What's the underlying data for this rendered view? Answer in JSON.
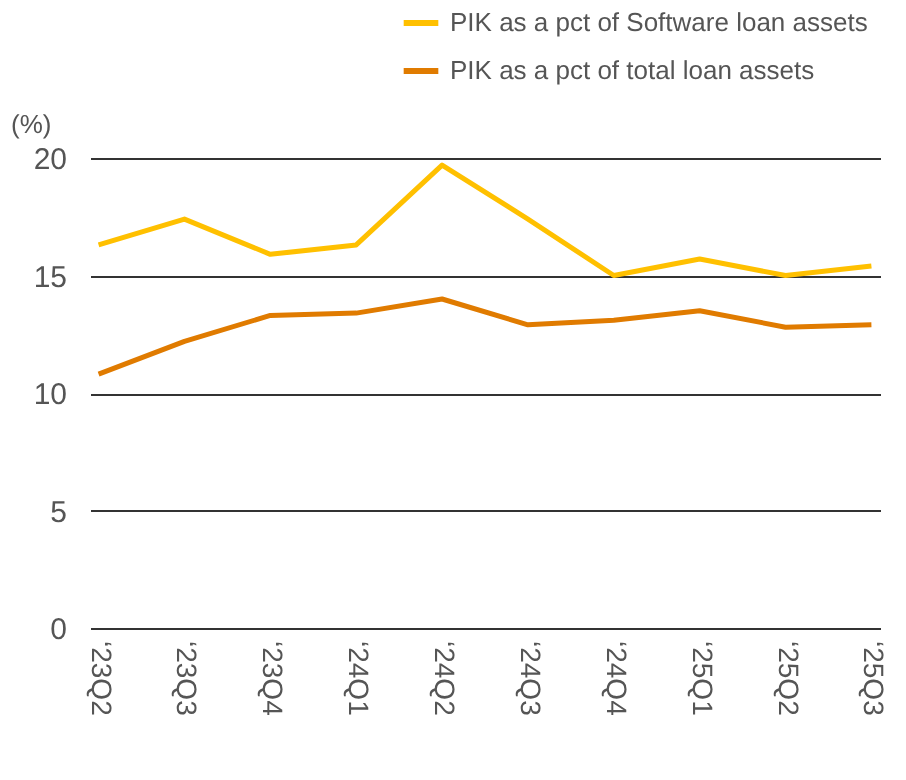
{
  "chart_data": {
    "type": "line",
    "ylabel": "(%)",
    "categories": [
      "‘23Q2",
      "‘23Q3",
      "‘23Q4",
      "‘24Q1",
      "‘24Q2",
      "‘24Q3",
      "‘24Q4",
      "‘25Q1",
      "‘25Q2",
      "‘25Q3"
    ],
    "series": [
      {
        "name": "PIK as a pct of Software loan assets",
        "color": "#ffc000",
        "values": [
          16.3,
          17.4,
          15.9,
          16.3,
          19.7,
          17.4,
          15.0,
          15.7,
          15.0,
          15.4
        ]
      },
      {
        "name": "PIK as a pct of total loan assets",
        "color": "#e07b00",
        "values": [
          10.8,
          12.2,
          13.3,
          13.4,
          14.0,
          12.9,
          13.1,
          13.5,
          12.8,
          12.9
        ]
      }
    ],
    "ylim": [
      0,
      20
    ],
    "yticks": [
      0,
      5,
      10,
      15,
      20
    ],
    "grid": "y",
    "legend": "top right",
    "marker": "none",
    "line_style": "solid"
  }
}
